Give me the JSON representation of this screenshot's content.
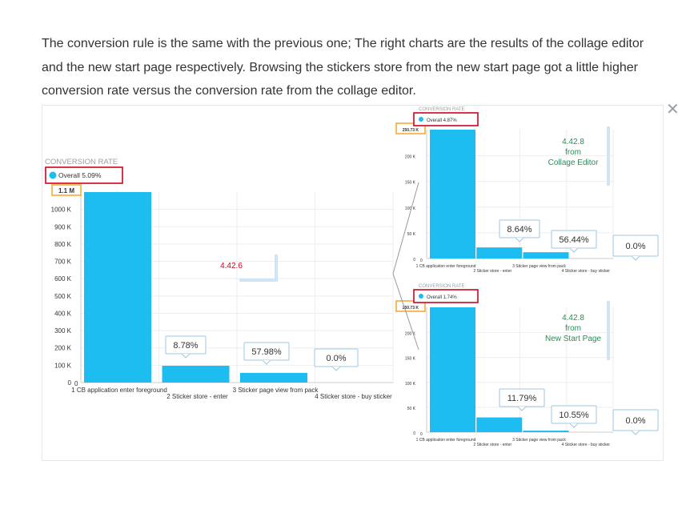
{
  "paragraph": "The conversion rule is the same with the previous one; The right charts are the results of the collage editor and the new start page respectively. Browsing the stickers store from the new start page got a little higher conversion rate versus the conversion rate from the collage editor.",
  "close_icon": "close-icon",
  "colors": {
    "bar": "#1ebdf1",
    "highlight_red": "#d0021b",
    "highlight_yellow": "#f5a623",
    "bracket": "#cfe4f5",
    "label_green": "#2e8b57",
    "label_red": "#d0021b"
  },
  "chart_data": [
    {
      "type": "bar",
      "title": "CONVERSION RATE",
      "legend": "Overall 5.09%",
      "legend_placement": "top-left",
      "top_tick": "1.1 M",
      "categories": [
        "1 CB application enter foreground",
        "2 Sticker store - enter",
        "3 Sticker page view from pack",
        "4 Sticker store - buy sticker"
      ],
      "values": [
        1100,
        97,
        56,
        0
      ],
      "conversion_labels": [
        "8.78%",
        "57.98%",
        "0.0%"
      ],
      "y_ticks": [
        "0",
        "100 K",
        "200 K",
        "300 K",
        "400 K",
        "500 K",
        "600 K",
        "700 K",
        "800 K",
        "900 K",
        "1000 K"
      ],
      "ylim": [
        0,
        1100
      ],
      "grid": true,
      "version_note": "4.42.6"
    },
    {
      "type": "bar",
      "title": "CONVERSION RATE",
      "legend": "Overall 4.87%",
      "legend_placement": "top-left",
      "top_tick": "250.73 K",
      "categories": [
        "1 CB application enter foreground",
        "2 Sticker store - enter",
        "3 Sticker page view from pack",
        "4 Sticker store - buy sticker"
      ],
      "values": [
        250.73,
        21.6,
        12.2,
        0
      ],
      "conversion_labels": [
        "8.64%",
        "56.44%",
        "0.0%"
      ],
      "y_ticks": [
        "0",
        "50 K",
        "100 K",
        "150 K",
        "200 K"
      ],
      "ylim": [
        0,
        250.73
      ],
      "grid": true,
      "version_note": "4.42.8\nfrom\nCollage Editor"
    },
    {
      "type": "bar",
      "title": "CONVERSION RATE",
      "legend": "Overall 1.74%",
      "legend_placement": "top-left",
      "top_tick": "250.73 K",
      "categories": [
        "1 CB application enter foreground",
        "2 Sticker store - enter",
        "3 Sticker page view from pack",
        "4 Sticker store - buy sticker"
      ],
      "values": [
        250.73,
        29.6,
        3.1,
        0
      ],
      "conversion_labels": [
        "11.79%",
        "10.55%",
        "0.0%"
      ],
      "y_ticks": [
        "0",
        "50 K",
        "100 K",
        "150 K",
        "200 K"
      ],
      "ylim": [
        0,
        250.73
      ],
      "grid": true,
      "version_note": "4.42.8\nfrom\nNew Start Page"
    }
  ]
}
